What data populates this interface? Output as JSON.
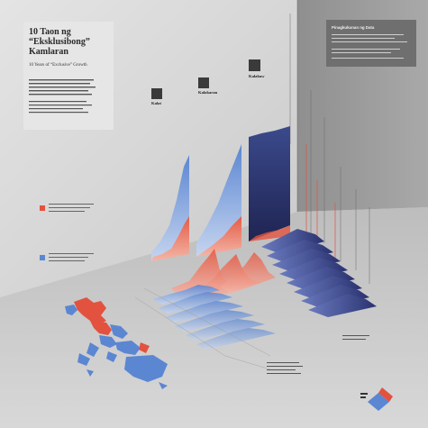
{
  "poster": {
    "title": "10 Taon ng “Eksklusibong” Kamlaran",
    "subtitle": "10 Years of “Exclusive” Growth"
  },
  "right_box": {
    "title": "Pinagkukunan ng Data"
  },
  "panels": [
    {
      "label": "Kalat"
    },
    {
      "label": "Kalakaran"
    },
    {
      "label": "Kalabaw"
    }
  ],
  "colors": {
    "red": "#e3523f",
    "blue": "#5b86d2",
    "navy": "#2c3366",
    "background": "#cfcfcf"
  }
}
